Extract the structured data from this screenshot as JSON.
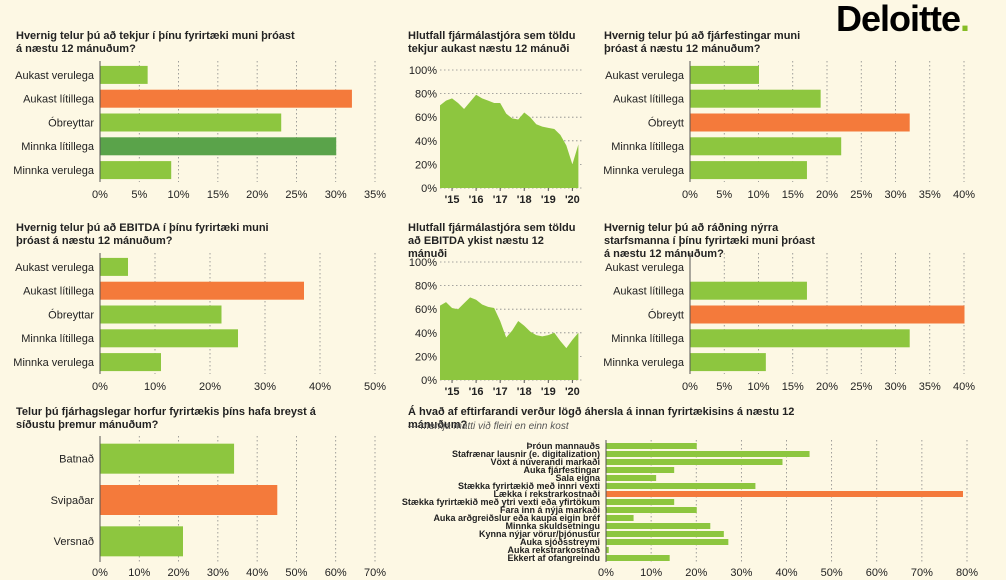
{
  "brand": {
    "name": "Deloitte",
    "dot": "."
  },
  "colors": {
    "green": "#8dc63f",
    "dark_green": "#5aa34a",
    "orange": "#f47a3b",
    "grid": "#888888"
  },
  "chart_data": [
    {
      "id": "c1",
      "type": "bar",
      "orientation": "horizontal",
      "title": "Hvernig telur þú að tekjur í þínu fyrirtæki muni þróast á næstu 12 mánuðum?",
      "categories": [
        "Aukast verulega",
        "Aukast lítillega",
        "Óbreyttar",
        "Minnka lítillega",
        "Minnka verulega"
      ],
      "values": [
        6,
        32,
        23,
        30,
        9
      ],
      "highlight": [
        1
      ],
      "highlight2": [
        3
      ],
      "xlim": [
        0,
        35
      ],
      "ticks": [
        0,
        5,
        10,
        15,
        20,
        25,
        30,
        35
      ],
      "tick_suffix": "%"
    },
    {
      "id": "c2",
      "type": "area",
      "title": "Hlutfall fjármálastjóra sem töldu tekjur aukast næstu 12 mánuði",
      "x": [
        2014.5,
        2014.75,
        2015,
        2015.25,
        2015.5,
        2015.75,
        2016,
        2016.25,
        2016.5,
        2016.75,
        2017,
        2017.25,
        2017.5,
        2017.75,
        2018,
        2018.25,
        2018.5,
        2018.75,
        2019,
        2019.25,
        2019.5,
        2019.75,
        2020,
        2020.25
      ],
      "y": [
        70,
        74,
        76,
        72,
        67,
        73,
        79,
        76,
        74,
        72,
        72,
        63,
        59,
        58,
        64,
        60,
        54,
        52,
        51,
        50,
        45,
        36,
        20,
        37
      ],
      "xlim": [
        2014.5,
        2020.4
      ],
      "ylim": [
        0,
        100
      ],
      "xticks": [
        2015,
        2016,
        2017,
        2018,
        2019,
        2020
      ],
      "xtick_labels": [
        "'15",
        "'16",
        "'17",
        "'18",
        "'19",
        "'20"
      ],
      "yticks": [
        0,
        20,
        40,
        60,
        80,
        100
      ],
      "ytick_suffix": "%"
    },
    {
      "id": "c3",
      "type": "bar",
      "orientation": "horizontal",
      "title": "Hvernig telur þú að fjárfestingar muni þróast á næstu 12 mánuðum?",
      "categories": [
        "Aukast verulega",
        "Aukast lítillega",
        "Óbreytt",
        "Minnka lítillega",
        "Minnka verulega"
      ],
      "values": [
        10,
        19,
        32,
        22,
        17
      ],
      "highlight": [
        2
      ],
      "xlim": [
        0,
        40
      ],
      "ticks": [
        0,
        5,
        10,
        15,
        20,
        25,
        30,
        35,
        40
      ],
      "tick_suffix": "%"
    },
    {
      "id": "c4",
      "type": "bar",
      "orientation": "horizontal",
      "title": "Hvernig telur þú að EBITDA í þínu fyrirtæki muni þróast á næstu 12 mánuðum?",
      "categories": [
        "Aukast verulega",
        "Aukast lítillega",
        "Óbreyttar",
        "Minnka lítillega",
        "Minnka verulega"
      ],
      "values": [
        5,
        37,
        22,
        25,
        11
      ],
      "highlight": [
        1
      ],
      "xlim": [
        0,
        50
      ],
      "ticks": [
        0,
        10,
        20,
        30,
        40,
        50
      ],
      "tick_suffix": "%"
    },
    {
      "id": "c5",
      "type": "area",
      "title": "Hlutfall fjármálastjóra sem töldu að EBITDA ykist næstu 12 mánuði",
      "x": [
        2014.5,
        2014.75,
        2015,
        2015.25,
        2015.5,
        2015.75,
        2016,
        2016.25,
        2016.5,
        2016.75,
        2017,
        2017.25,
        2017.5,
        2017.75,
        2018,
        2018.25,
        2018.5,
        2018.75,
        2019,
        2019.25,
        2019.5,
        2019.75,
        2020,
        2020.25
      ],
      "y": [
        63,
        66,
        61,
        60,
        65,
        70,
        68,
        64,
        62,
        61,
        50,
        36,
        42,
        50,
        46,
        41,
        38,
        37,
        38,
        40,
        33,
        27,
        34,
        40
      ],
      "xlim": [
        2014.5,
        2020.4
      ],
      "ylim": [
        0,
        100
      ],
      "xticks": [
        2015,
        2016,
        2017,
        2018,
        2019,
        2020
      ],
      "xtick_labels": [
        "'15",
        "'16",
        "'17",
        "'18",
        "'19",
        "'20"
      ],
      "yticks": [
        0,
        20,
        40,
        60,
        80,
        100
      ],
      "ytick_suffix": "%"
    },
    {
      "id": "c6",
      "type": "bar",
      "orientation": "horizontal",
      "title": "Hvernig telur þú að ráðning nýrra starfsmanna í þínu fyrirtæki muni þróast á næstu 12 mánuðum?",
      "categories": [
        "Aukast verulega",
        "Aukast lítillega",
        "Óbreytt",
        "Minnka lítillega",
        "Minnka verulega"
      ],
      "values": [
        0,
        17,
        40,
        32,
        11
      ],
      "highlight": [
        2
      ],
      "xlim": [
        0,
        40
      ],
      "ticks": [
        0,
        5,
        10,
        15,
        20,
        25,
        30,
        35,
        40
      ],
      "tick_suffix": "%"
    },
    {
      "id": "c7",
      "type": "bar",
      "orientation": "horizontal",
      "title": "Telur þú fjárhagslegar horfur fyrirtækis þíns hafa breyst á síðustu þremur mánuðum?",
      "categories": [
        "Batnað",
        "Svipaðar",
        "Versnað"
      ],
      "values": [
        34,
        45,
        21
      ],
      "highlight": [
        1
      ],
      "xlim": [
        0,
        70
      ],
      "ticks": [
        0,
        10,
        20,
        30,
        40,
        50,
        60,
        70
      ],
      "tick_suffix": "%"
    },
    {
      "id": "c8",
      "type": "bar",
      "orientation": "horizontal",
      "title": "Á hvað af eftirfarandi verður lögð áhersla á innan fyrirtækisins á næstu 12 mánuðum?",
      "subtitle": "— merkja mátti við fleiri en einn kost",
      "categories": [
        "Þróun mannauðs",
        "Stafrænar lausnir (e. digitalization)",
        "Vöxt á núverandi markaði",
        "Auka fjárfestingar",
        "Sala eigna",
        "Stækka fyrirtækið með innri vexti",
        "Lækka í rekstrarkostnaði",
        "Stækka fyrirtækið með ytri vexti eða yfirtökum",
        "Fara inn á nýja markaði",
        "Auka arðgreiðslur eða kaupa eigin bréf",
        "Minnka skuldsetningu",
        "Kynna nýjar vörur/þjónustur",
        "Auka sjóðsstreymi",
        "Auka rekstrarkostnað",
        "Ekkert af ofangreindu"
      ],
      "values": [
        20,
        45,
        39,
        15,
        11,
        33,
        79,
        15,
        20,
        6,
        23,
        26,
        27,
        0.5,
        14
      ],
      "highlight": [
        6
      ],
      "xlim": [
        0,
        80
      ],
      "ticks": [
        0,
        10,
        20,
        30,
        40,
        50,
        60,
        70,
        80
      ],
      "tick_suffix": "%"
    }
  ]
}
